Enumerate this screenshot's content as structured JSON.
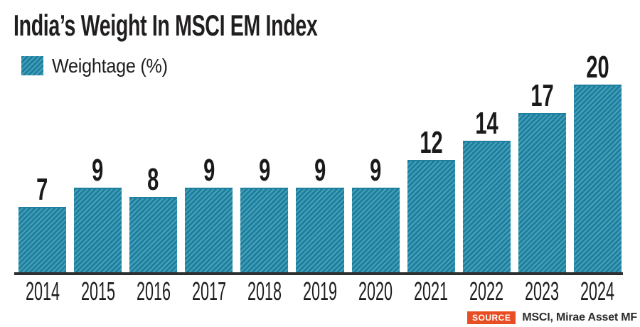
{
  "title": "India’s Weight In MSCI EM Index",
  "legend": {
    "label": "Weightage (%)",
    "swatch_color": "#1e7f9e",
    "swatch_stripe_color": "#4aa3bb",
    "swatch_hatch": "diagonal-forward"
  },
  "source": {
    "badge": "SOURCE",
    "badge_color": "#e84e24",
    "text": "MSCI, Mirae Asset MF"
  },
  "chart_data": {
    "type": "bar",
    "title": "India’s Weight In MSCI EM Index",
    "categories": [
      "2014",
      "2015",
      "2016",
      "2017",
      "2018",
      "2019",
      "2020",
      "2021",
      "2022",
      "2023",
      "2024"
    ],
    "values": [
      7,
      9,
      8,
      9,
      9,
      9,
      9,
      12,
      14,
      17,
      20
    ],
    "series_name": "Weightage (%)",
    "xlabel": "",
    "ylabel": "",
    "ylim": [
      0,
      20
    ],
    "grid": false,
    "legend_position": "top-left",
    "bar_color": "#1e7f9e",
    "bar_hatch": "diagonal-forward",
    "value_labels": true,
    "axis_line_color": "#2f2f2f",
    "text_color": "#1a1a1a"
  }
}
